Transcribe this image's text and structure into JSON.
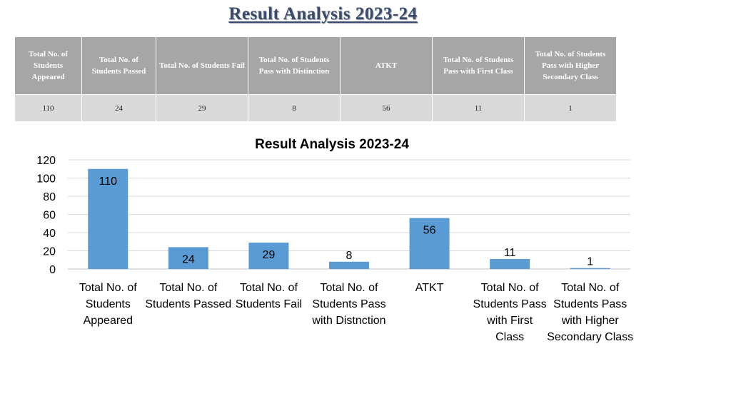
{
  "page": {
    "title": "Result Analysis 2023-24"
  },
  "table": {
    "headers": [
      "Total No. of Students Appeared",
      "Total No. of Students Passed",
      "Total No. of Students Fail",
      "Total No. of Students Pass with Distinction",
      "ATKT",
      "Total No. of Students Pass with First Class",
      "Total No. of Students Pass with Higher Secondary Class"
    ],
    "values": [
      "110",
      "24",
      "29",
      "8",
      "56",
      "11",
      "1"
    ]
  },
  "chart_data": {
    "type": "bar",
    "title": "Result Analysis 2023-24",
    "categories": [
      "Total No. of Students Appeared",
      "Total No. of Students Passed",
      "Total No. of Students Fail",
      "Total No. of Students Pass with Distnction",
      "ATKT",
      "Total No. of Students Pass with First Class",
      "Total No. of Students Pass with Higher Secondary Class"
    ],
    "values": [
      110,
      24,
      29,
      8,
      56,
      11,
      1
    ],
    "data_labels": [
      "110",
      "24",
      "29",
      "8",
      "56",
      "11",
      "1"
    ],
    "yticks": [
      "0",
      "20",
      "40",
      "60",
      "80",
      "100",
      "120"
    ],
    "ylim": [
      0,
      120
    ],
    "xlabel": "",
    "ylabel": "",
    "grid": true,
    "legend": "none",
    "colors": {
      "bar": "#5b9bd5",
      "grid": "#d9d9d9",
      "axis": "#bfbfbf",
      "text": "#000000"
    }
  }
}
